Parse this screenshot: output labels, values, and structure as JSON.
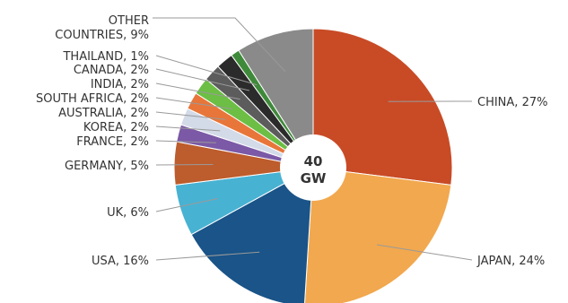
{
  "chart_data": {
    "type": "pie",
    "title": "",
    "center_label": [
      "40",
      "GW"
    ],
    "slices": [
      {
        "name": "CHINA",
        "value": 27,
        "label": "CHINA, 27%",
        "color": "#c84b26"
      },
      {
        "name": "JAPAN",
        "value": 24,
        "label": "JAPAN, 24%",
        "color": "#f2a84e"
      },
      {
        "name": "USA",
        "value": 16,
        "label": "USA, 16%",
        "color": "#1a5488"
      },
      {
        "name": "UK",
        "value": 6,
        "label": "UK, 6%",
        "color": "#48b2d3"
      },
      {
        "name": "GERMANY",
        "value": 5,
        "label": "GERMANY, 5%",
        "color": "#bd5c2c"
      },
      {
        "name": "FRANCE",
        "value": 2,
        "label": "FRANCE, 2%",
        "color": "#7b59a6"
      },
      {
        "name": "KOREA",
        "value": 2,
        "label": "KOREA, 2%",
        "color": "#d3dae8"
      },
      {
        "name": "AUSTRALIA",
        "value": 2,
        "label": "AUSTRALIA, 2%",
        "color": "#e8763a"
      },
      {
        "name": "SOUTH AFRICA",
        "value": 2,
        "label": "SOUTH AFRICA, 2%",
        "color": "#6cbe45"
      },
      {
        "name": "INDIA",
        "value": 2,
        "label": "INDIA, 2%",
        "color": "#5c5c5c"
      },
      {
        "name": "CANADA",
        "value": 2,
        "label": "CANADA, 2%",
        "color": "#2b2b2b"
      },
      {
        "name": "THAILAND",
        "value": 1,
        "label": "THAILAND, 1%",
        "color": "#3f8a3a"
      },
      {
        "name": "OTHER COUNTRIES",
        "value": 9,
        "label": "OTHER\nCOUNTRIES, 9%",
        "color": "#8a8a8a"
      }
    ]
  }
}
